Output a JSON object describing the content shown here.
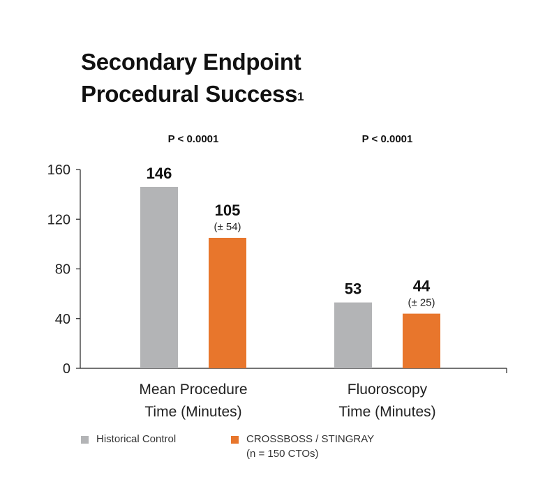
{
  "title": {
    "line1": "Secondary Endpoint",
    "line2": "Procedural Success",
    "superscript": "1"
  },
  "chart_data": {
    "type": "bar",
    "title": "Secondary Endpoint Procedural Success",
    "ylim": [
      0,
      160
    ],
    "yticks": [
      0,
      40,
      80,
      120,
      160
    ],
    "groups": [
      {
        "label_line1": "Mean Procedure",
        "label_line2": "Time (Minutes)",
        "p_value": "P < 0.0001",
        "bars": [
          {
            "series": "Historical Control",
            "value": 146,
            "label": "146",
            "sd": ""
          },
          {
            "series": "CROSSBOSS / STINGRAY",
            "value": 105,
            "label": "105",
            "sd": "(± 54)"
          }
        ]
      },
      {
        "label_line1": "Fluoroscopy",
        "label_line2": "Time (Minutes)",
        "p_value": "P < 0.0001",
        "bars": [
          {
            "series": "Historical Control",
            "value": 53,
            "label": "53",
            "sd": ""
          },
          {
            "series": "CROSSBOSS / STINGRAY",
            "value": 44,
            "label": "44",
            "sd": "(± 25)"
          }
        ]
      }
    ],
    "series": [
      {
        "name": "Historical Control",
        "color": "#b3b4b6"
      },
      {
        "name": "CROSSBOSS / STINGRAY",
        "color": "#e8762c"
      }
    ]
  },
  "legend": {
    "items": [
      {
        "label": "Historical Control",
        "sublabel": "",
        "color": "#b3b4b6"
      },
      {
        "label": "CROSSBOSS / STINGRAY",
        "sublabel": "(n = 150 CTOs)",
        "color": "#e8762c"
      }
    ]
  }
}
